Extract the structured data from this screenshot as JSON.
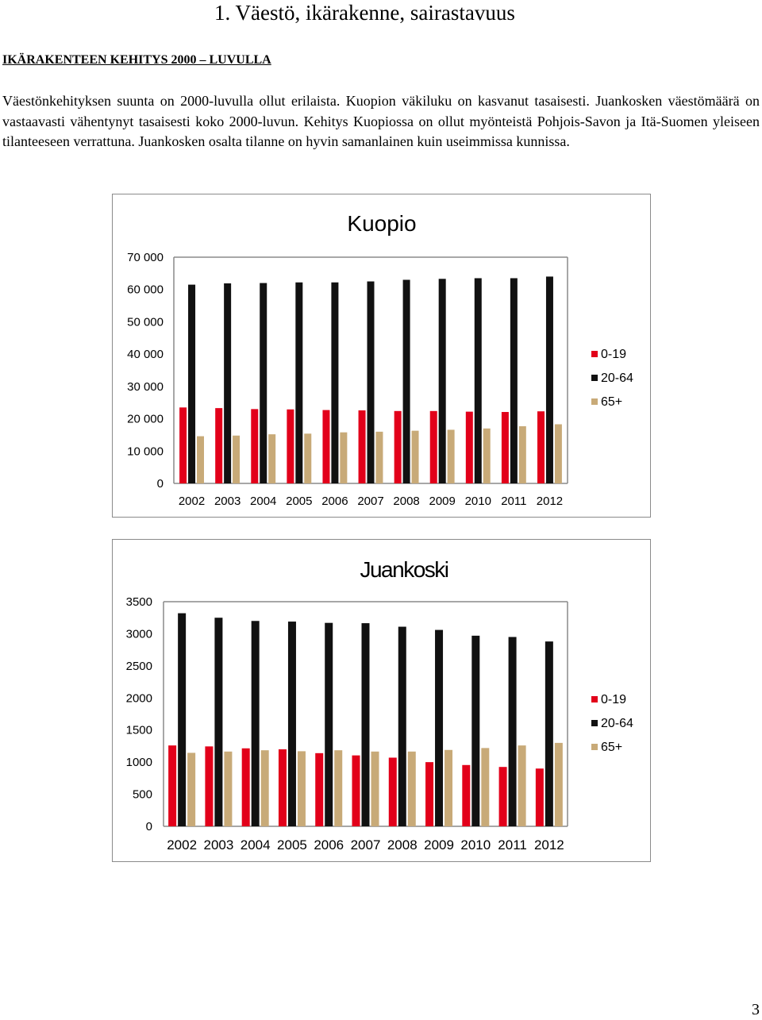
{
  "page": {
    "heading": "1. Väestö, ikärakenne, sairastavuus",
    "subheading": "IKÄRAKENTEEN KEHITYS 2000 – LUVULLA",
    "body": "Väestönkehityksen suunta on 2000-luvulla ollut erilaista. Kuopion väkiluku on kasvanut tasaisesti. Juankosken väestömäärä on vastaavasti vähentynyt tasaisesti koko 2000-luvun. Kehitys Kuopiossa on ollut myönteistä Pohjois-Savon ja Itä-Suomen yleiseen tilanteeseen verrattuna. Juankosken osalta tilanne on hyvin samanlainen kuin useimmissa kunnissa.",
    "page_number": "3"
  },
  "chart_data": [
    {
      "type": "bar",
      "title": "Kuopio",
      "categories": [
        "2002",
        "2003",
        "2004",
        "2005",
        "2006",
        "2007",
        "2008",
        "2009",
        "2010",
        "2011",
        "2012"
      ],
      "series": [
        {
          "name": "0-19",
          "color": "#e2001a",
          "values": [
            23500,
            23300,
            23000,
            22900,
            22700,
            22600,
            22400,
            22400,
            22200,
            22100,
            22300
          ]
        },
        {
          "name": "20-64",
          "color": "#111111",
          "values": [
            61500,
            61900,
            62000,
            62200,
            62200,
            62500,
            63000,
            63300,
            63500,
            63500,
            64000
          ]
        },
        {
          "name": "65+",
          "color": "#c8aa78",
          "values": [
            14600,
            14800,
            15200,
            15400,
            15800,
            16000,
            16300,
            16600,
            17000,
            17700,
            18300
          ]
        }
      ],
      "yticks": [
        "0",
        "10 000",
        "20 000",
        "30 000",
        "40 000",
        "50 000",
        "60 000",
        "70 000"
      ],
      "ylim": [
        0,
        70000
      ],
      "legend_position": "right"
    },
    {
      "type": "bar",
      "title": "Juankoski",
      "categories": [
        "2002",
        "2003",
        "2004",
        "2005",
        "2006",
        "2007",
        "2008",
        "2009",
        "2010",
        "2011",
        "2012"
      ],
      "series": [
        {
          "name": "0-19",
          "color": "#e2001a",
          "values": [
            1260,
            1245,
            1215,
            1200,
            1140,
            1105,
            1070,
            1000,
            955,
            925,
            900
          ]
        },
        {
          "name": "20-64",
          "color": "#111111",
          "values": [
            3320,
            3250,
            3200,
            3190,
            3170,
            3165,
            3110,
            3060,
            2970,
            2950,
            2880
          ]
        },
        {
          "name": "65+",
          "color": "#c8aa78",
          "values": [
            1145,
            1165,
            1185,
            1170,
            1185,
            1165,
            1165,
            1190,
            1220,
            1260,
            1300
          ]
        }
      ],
      "yticks": [
        "0",
        "500",
        "1000",
        "1500",
        "2000",
        "2500",
        "3000",
        "3500"
      ],
      "ylim": [
        0,
        3500
      ],
      "legend_position": "right"
    }
  ]
}
